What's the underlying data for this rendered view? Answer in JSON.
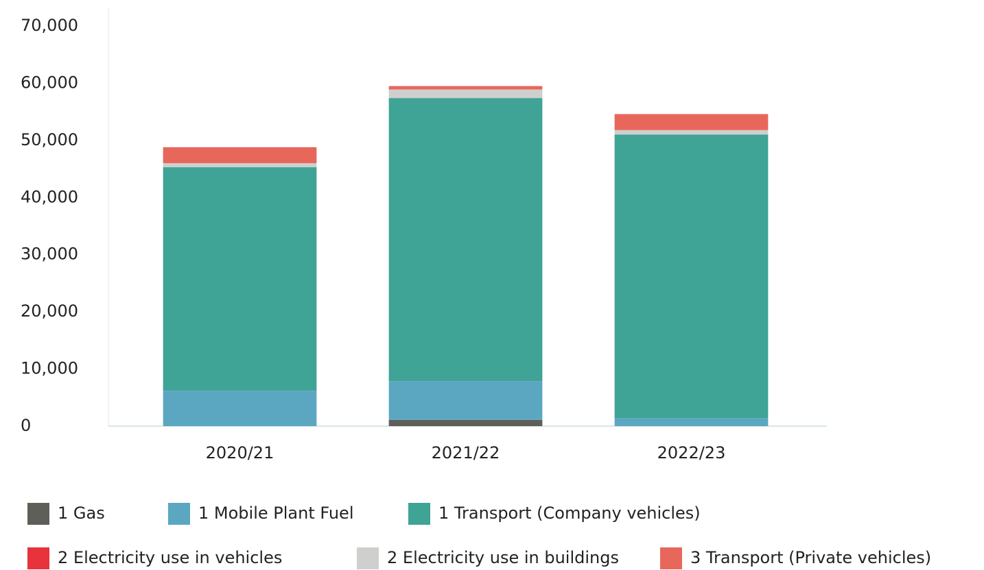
{
  "chart_data": {
    "type": "stacked_bar",
    "categories": [
      "2020/21",
      "2021/22",
      "2022/23"
    ],
    "series": [
      {
        "name": "1 Gas",
        "color": "#5e5f58",
        "values": [
          0,
          1100,
          0
        ]
      },
      {
        "name": "1 Mobile Plant Fuel",
        "color": "#5ba7c1",
        "values": [
          6200,
          6800,
          1400
        ]
      },
      {
        "name": "1 Transport (Company vehicles)",
        "color": "#3fa396",
        "values": [
          39100,
          49500,
          49600
        ]
      },
      {
        "name": "2 Electricity use in vehicles",
        "color": "#e8323c",
        "values": [
          0,
          0,
          0
        ]
      },
      {
        "name": "2 Electricity use in buildings",
        "color": "#cfcfcd",
        "values": [
          700,
          1500,
          800
        ]
      },
      {
        "name": "3 Transport (Private vehicles)",
        "color": "#e8675b",
        "values": [
          2800,
          600,
          2800
        ]
      }
    ],
    "ylim": [
      0,
      70000
    ],
    "yticks": [
      0,
      {
        "value": 10000,
        "label": "10,000"
      },
      {
        "value": 20000,
        "label": "20,000"
      },
      {
        "value": 30000,
        "label": "30,000"
      },
      {
        "value": 40000,
        "label": "40,000"
      },
      {
        "value": 50000,
        "label": "50,000"
      },
      {
        "value": 60000,
        "label": "60,000"
      },
      {
        "value": 70000,
        "label": "70,000"
      }
    ]
  }
}
